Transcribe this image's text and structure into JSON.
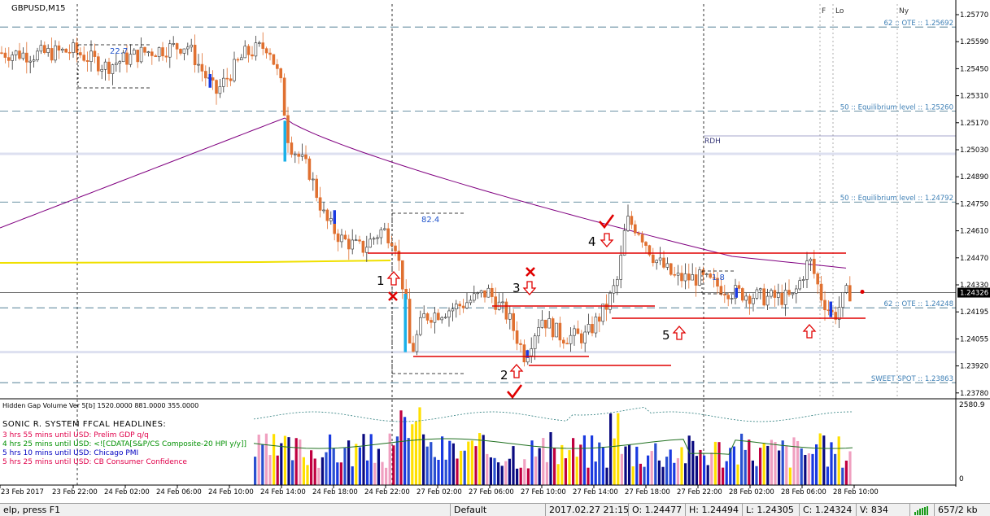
{
  "window": {
    "title": "GBPUSD,M15",
    "session_markers": [
      "F",
      "Lo",
      "Ny"
    ]
  },
  "price_axis": {
    "ticks": [
      "1.25770",
      "1.25590",
      "1.25450",
      "1.25310",
      "1.25170",
      "1.25030",
      "1.24890",
      "1.24750",
      "1.24610",
      "1.24470",
      "1.24330",
      "1.24195",
      "1.24055",
      "1.23920",
      "1.23780"
    ],
    "current_price": "1.24326"
  },
  "time_axis": {
    "labels": [
      "23 Feb 2017",
      "23 Feb 22:00",
      "24 Feb 02:00",
      "24 Feb 06:00",
      "24 Feb 10:00",
      "24 Feb 14:00",
      "24 Feb 18:00",
      "24 Feb 22:00",
      "27 Feb 02:00",
      "27 Feb 06:00",
      "27 Feb 10:00",
      "27 Feb 14:00",
      "27 Feb 18:00",
      "27 Feb 22:00",
      "28 Feb 02:00",
      "28 Feb 06:00",
      "28 Feb 10:00"
    ]
  },
  "level_labels": [
    {
      "text": "62 :: OTE :: 1.25692",
      "price": 1.25692
    },
    {
      "text": "50 :: Equilibrium level :: 1.25260",
      "price": 1.2526
    },
    {
      "text": "50 :: Equilibrium level :: 1.24792",
      "price": 1.24792
    },
    {
      "text": "62 :: OTE :: 1.24248",
      "price": 1.24248
    },
    {
      "text": "SWEET SPOT :: 1.23863",
      "price": 1.23863
    }
  ],
  "annotations": {
    "rdh": "RDH",
    "box_labels": [
      "22.7",
      "82.4",
      "1.8"
    ],
    "numbers": [
      "1",
      "2",
      "3",
      "4",
      "5"
    ]
  },
  "indicator": {
    "title": "Hidden Gap Volume Ver 5[b] 1520.0000 881.0000 355.0000",
    "scale_top": "2580.9",
    "scale_bottom": "0"
  },
  "headlines": {
    "title": "SONIC R. SYSTEM  FFCAL HEADLINES:",
    "items": [
      {
        "text": "3 hrs 55 mins until USD: Prelim GDP q/q",
        "color": "#e0004a"
      },
      {
        "text": "4 hrs 25 mins until USD: <![CDATA[S&P/CS Composite-20 HPI y/y]]",
        "color": "#009000"
      },
      {
        "text": "5 hrs 10 mins until USD: Chicago PMI",
        "color": "#0000c0"
      },
      {
        "text": "5 hrs 25 mins until USD: CB Consumer Confidence",
        "color": "#e0004a"
      }
    ]
  },
  "status_bar": {
    "help": "elp, press F1",
    "profile": "Default",
    "datetime": "2017.02.27 21:15",
    "open": "O: 1.24477",
    "high": "H: 1.24494",
    "low": "L: 1.24305",
    "close": "C: 1.24324",
    "volume": "V: 834",
    "traffic": "657/2 kb"
  },
  "colors": {
    "bull": "#1ab0e8",
    "bear": "#e07030",
    "ma": "#800080",
    "yellow_line": "#f0e000",
    "red_levels": "#e00000",
    "level_text": "#3d7fb5"
  },
  "chart_data": {
    "type": "candlestick",
    "title": "GBPUSD,M15",
    "ylim": [
      1.2378,
      1.2581
    ],
    "key_prices": {
      "ote_upper": 1.25692,
      "equilibrium_upper": 1.2526,
      "equilibrium_lower": 1.24792,
      "ote_lower": 1.24248,
      "sweet_spot": 1.23863,
      "current": 1.24326
    },
    "ohlc_last": {
      "open": 1.24477,
      "high": 1.24494,
      "low": 1.24305,
      "close": 1.24324,
      "volume": 834
    }
  }
}
